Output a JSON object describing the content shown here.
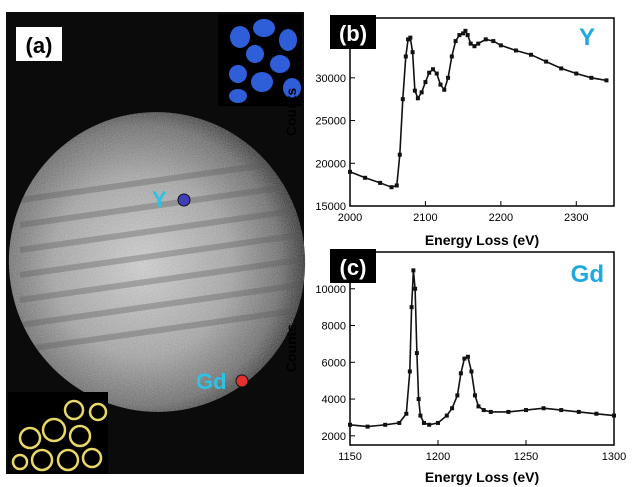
{
  "panel_a": {
    "label": "(a)",
    "markers": [
      {
        "label": "Y",
        "dot_color": "#3f3fb8",
        "label_color": "#2cc3e6"
      },
      {
        "label": "Gd",
        "dot_color": "#e03030",
        "label_color": "#2cc3e6"
      }
    ],
    "insets": [
      {
        "element": "Y",
        "color": "#2f5fd8",
        "shape": "blue particle clusters"
      },
      {
        "element": "Gd",
        "color": "#e8d86a",
        "shape": "yellow ring outlines"
      }
    ]
  },
  "chart_data": [
    {
      "panel": "(b)",
      "type": "line",
      "element_label": "Y",
      "element_color": "#20a8e0",
      "xlabel": "Energy Loss (eV)",
      "ylabel": "Counts",
      "xlim": [
        2000,
        2350
      ],
      "ylim": [
        15000,
        37000
      ],
      "xticks": [
        "2000",
        "2100",
        "2200",
        "2300"
      ],
      "yticks": [
        "15000",
        "20000",
        "25000",
        "30000"
      ],
      "x": [
        2000,
        2020,
        2040,
        2055,
        2062,
        2066,
        2070,
        2074,
        2077,
        2080,
        2083,
        2086,
        2090,
        2095,
        2100,
        2105,
        2110,
        2115,
        2120,
        2125,
        2130,
        2135,
        2140,
        2145,
        2150,
        2153,
        2156,
        2160,
        2165,
        2170,
        2180,
        2190,
        2200,
        2220,
        2240,
        2260,
        2280,
        2300,
        2320,
        2340
      ],
      "y": [
        19000,
        18300,
        17700,
        17200,
        17400,
        21000,
        27500,
        32500,
        34500,
        34700,
        33000,
        28500,
        27600,
        28300,
        29500,
        30600,
        31000,
        30500,
        29200,
        28600,
        30000,
        32500,
        34300,
        35000,
        35200,
        35500,
        35000,
        34000,
        33700,
        34000,
        34500,
        34300,
        33800,
        33200,
        32700,
        31900,
        31100,
        30500,
        30000,
        29700
      ]
    },
    {
      "panel": "(c)",
      "type": "line",
      "element_label": "Gd",
      "element_color": "#20a8e0",
      "xlabel": "Energy Loss (eV)",
      "ylabel": "Counts",
      "xlim": [
        1150,
        1300
      ],
      "ylim": [
        1500,
        12000
      ],
      "xticks": [
        "1150",
        "1200",
        "1250",
        "1300"
      ],
      "yticks": [
        "2000",
        "4000",
        "6000",
        "8000",
        "10000"
      ],
      "x": [
        1150,
        1160,
        1170,
        1178,
        1182,
        1184,
        1185,
        1186,
        1187,
        1188,
        1189,
        1190,
        1192,
        1195,
        1200,
        1205,
        1208,
        1211,
        1213,
        1215,
        1217,
        1219,
        1221,
        1223,
        1226,
        1230,
        1240,
        1250,
        1260,
        1270,
        1280,
        1290,
        1300
      ],
      "y": [
        2600,
        2500,
        2600,
        2700,
        3200,
        5500,
        9000,
        11000,
        10000,
        6500,
        4000,
        3100,
        2700,
        2600,
        2700,
        3100,
        3500,
        4200,
        5400,
        6200,
        6300,
        5500,
        4200,
        3600,
        3400,
        3300,
        3300,
        3400,
        3500,
        3400,
        3300,
        3200,
        3100
      ]
    }
  ]
}
